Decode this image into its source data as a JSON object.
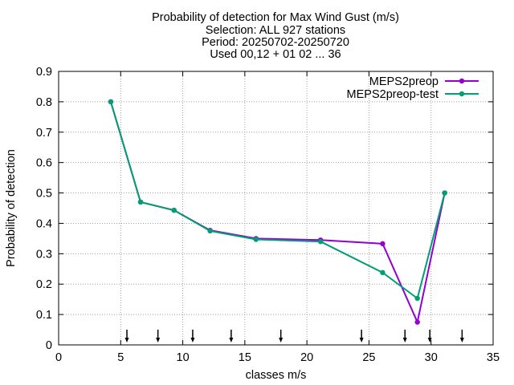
{
  "chart_data": {
    "type": "line",
    "title_lines": [
      "Probability of detection  for Max Wind Gust (m/s)",
      "Selection: ALL    927 stations",
      "Period: 20250702-20250720",
      "Used 00,12 + 01 02 ... 36"
    ],
    "xlabel": "classes m/s",
    "ylabel": "Probability of detection",
    "xlim": [
      0,
      35
    ],
    "ylim": [
      0,
      0.9
    ],
    "xticks": [
      0,
      5,
      10,
      15,
      20,
      25,
      30,
      35
    ],
    "yticks": [
      0,
      0.1,
      0.2,
      0.3,
      0.4,
      0.5,
      0.6,
      0.7,
      0.8,
      0.9
    ],
    "grid": true,
    "legend_position": "top-right",
    "series": [
      {
        "name": "MEPS2preop",
        "color": "#9400d3",
        "x": [
          4.2,
          6.6,
          9.3,
          12.2,
          15.9,
          21.1,
          26.1,
          28.9,
          31.1
        ],
        "y": [
          0.8,
          0.47,
          0.443,
          0.377,
          0.35,
          0.345,
          0.333,
          0.075,
          0.5
        ]
      },
      {
        "name": "MEPS2preop-test",
        "color": "#009e73",
        "x": [
          4.2,
          6.6,
          9.3,
          12.2,
          15.9,
          21.1,
          26.1,
          28.9,
          31.1
        ],
        "y": [
          0.8,
          0.47,
          0.443,
          0.375,
          0.347,
          0.34,
          0.238,
          0.153,
          0.5
        ]
      }
    ],
    "class_boundaries": [
      5.5,
      8.0,
      10.8,
      13.9,
      17.9,
      24.4,
      27.9,
      29.9,
      32.5
    ]
  }
}
